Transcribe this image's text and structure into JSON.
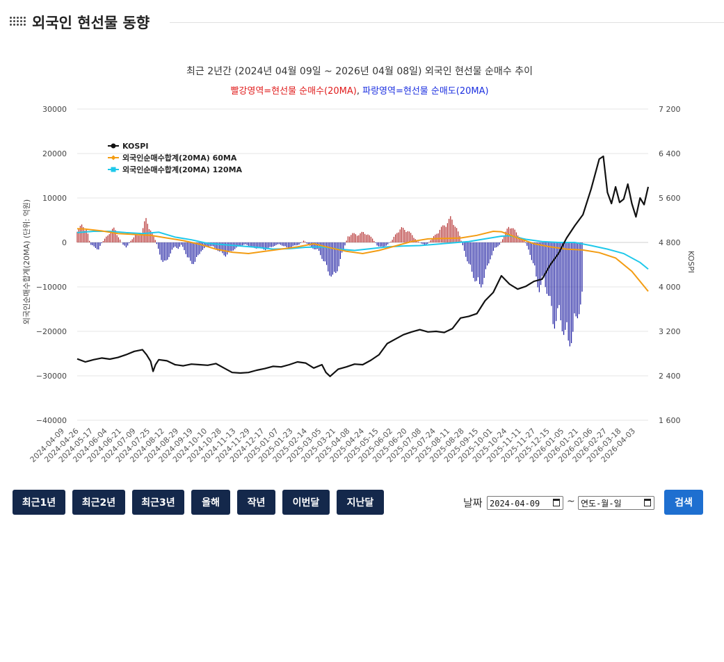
{
  "page": {
    "title": "외국인 현선물 동향"
  },
  "chart_data": {
    "type": "bar+line",
    "title": "최근 2년간 (2024년 04월 09일 ~ 2026년 04월 08일) 외국인 현선물 순매수 추이",
    "subtitle_red": "빨강영역=현선물 순매수(20MA)",
    "subtitle_sep": ", ",
    "subtitle_blue": "파랑영역=현선물 순매도(20MA)",
    "ylabel_left": "외국인순매수합계(20MA) (단위: 억원)",
    "ylabel_right": "KOSPI",
    "ylim_left": [
      -40000,
      30000
    ],
    "yticks_left": [
      "30000",
      "20000",
      "10000",
      "0",
      "−10000",
      "−20000",
      "−30000",
      "−40000"
    ],
    "ylim_right": [
      1600,
      7200
    ],
    "yticks_right": [
      "7 200",
      "6 400",
      "5 600",
      "4 800",
      "4 000",
      "3 200",
      "2 400",
      "1 600"
    ],
    "x_tick_labels": [
      "2024-04-09",
      "2024-04-26",
      "2024-05-17",
      "2024-06-04",
      "2024-06-21",
      "2024-07-09",
      "2024-07-25",
      "2024-08-12",
      "2024-08-29",
      "2024-09-19",
      "2024-10-10",
      "2024-10-28",
      "2024-11-13",
      "2024-11-29",
      "2024-12-17",
      "2025-01-07",
      "2025-01-23",
      "2025-02-14",
      "2025-03-05",
      "2025-03-21",
      "2025-04-08",
      "2025-04-24",
      "2025-05-15",
      "2025-06-02",
      "2025-06-20",
      "2025-07-08",
      "2025-07-24",
      "2025-08-11",
      "2025-08-28",
      "2025-09-15",
      "2025-10-01",
      "2025-10-24",
      "2025-11-11",
      "2025-11-27",
      "2025-12-15",
      "2026-01-05",
      "2026-01-21",
      "2026-02-06",
      "2026-02-27",
      "2026-03-18",
      "2026-04-03"
    ],
    "legend": [
      {
        "name": "KOSPI",
        "color": "#111111",
        "marker": "circle"
      },
      {
        "name": "외국인순매수합계(20MA) 60MA",
        "color": "#f39c12",
        "marker": "diamond"
      },
      {
        "name": "외국인순매수합계(20MA) 120MA",
        "color": "#1ec8ea",
        "marker": "square"
      }
    ],
    "legend_position": "top-left",
    "colors": {
      "positive_bar": "#b22a2a",
      "negative_bar": "#1a1aa0",
      "kospi": "#111111",
      "ma60": "#f39c12",
      "ma120": "#1ec8ea",
      "red_text": "#e01b1b",
      "blue_text": "#1b2fe0"
    },
    "series_kospi": [
      {
        "x": 0,
        "v": 2705
      },
      {
        "x": 1,
        "v": 2650
      },
      {
        "x": 2,
        "v": 2690
      },
      {
        "x": 3,
        "v": 2720
      },
      {
        "x": 4,
        "v": 2700
      },
      {
        "x": 5,
        "v": 2730
      },
      {
        "x": 6,
        "v": 2780
      },
      {
        "x": 7,
        "v": 2840
      },
      {
        "x": 8,
        "v": 2870
      },
      {
        "x": 8.5,
        "v": 2780
      },
      {
        "x": 9,
        "v": 2660
      },
      {
        "x": 9.3,
        "v": 2480
      },
      {
        "x": 9.6,
        "v": 2600
      },
      {
        "x": 10,
        "v": 2690
      },
      {
        "x": 11,
        "v": 2670
      },
      {
        "x": 12,
        "v": 2600
      },
      {
        "x": 13,
        "v": 2580
      },
      {
        "x": 14,
        "v": 2610
      },
      {
        "x": 15,
        "v": 2600
      },
      {
        "x": 16,
        "v": 2590
      },
      {
        "x": 17,
        "v": 2620
      },
      {
        "x": 18,
        "v": 2540
      },
      {
        "x": 19,
        "v": 2460
      },
      {
        "x": 20,
        "v": 2450
      },
      {
        "x": 21,
        "v": 2460
      },
      {
        "x": 22,
        "v": 2500
      },
      {
        "x": 23,
        "v": 2530
      },
      {
        "x": 24,
        "v": 2570
      },
      {
        "x": 25,
        "v": 2560
      },
      {
        "x": 26,
        "v": 2600
      },
      {
        "x": 27,
        "v": 2650
      },
      {
        "x": 28,
        "v": 2630
      },
      {
        "x": 29,
        "v": 2540
      },
      {
        "x": 30,
        "v": 2600
      },
      {
        "x": 30.5,
        "v": 2460
      },
      {
        "x": 31,
        "v": 2390
      },
      {
        "x": 32,
        "v": 2520
      },
      {
        "x": 33,
        "v": 2560
      },
      {
        "x": 34,
        "v": 2610
      },
      {
        "x": 35,
        "v": 2600
      },
      {
        "x": 36,
        "v": 2680
      },
      {
        "x": 37,
        "v": 2780
      },
      {
        "x": 38,
        "v": 2980
      },
      {
        "x": 39,
        "v": 3060
      },
      {
        "x": 40,
        "v": 3140
      },
      {
        "x": 41,
        "v": 3190
      },
      {
        "x": 42,
        "v": 3230
      },
      {
        "x": 43,
        "v": 3190
      },
      {
        "x": 44,
        "v": 3200
      },
      {
        "x": 45,
        "v": 3180
      },
      {
        "x": 46,
        "v": 3250
      },
      {
        "x": 47,
        "v": 3440
      },
      {
        "x": 48,
        "v": 3470
      },
      {
        "x": 49,
        "v": 3520
      },
      {
        "x": 50,
        "v": 3750
      },
      {
        "x": 51,
        "v": 3900
      },
      {
        "x": 52,
        "v": 4200
      },
      {
        "x": 53,
        "v": 4050
      },
      {
        "x": 54,
        "v": 3960
      },
      {
        "x": 55,
        "v": 4010
      },
      {
        "x": 56,
        "v": 4100
      },
      {
        "x": 57,
        "v": 4140
      },
      {
        "x": 58,
        "v": 4400
      },
      {
        "x": 59,
        "v": 4600
      },
      {
        "x": 60,
        "v": 4880
      },
      {
        "x": 61,
        "v": 5100
      },
      {
        "x": 62,
        "v": 5300
      },
      {
        "x": 63,
        "v": 5760
      },
      {
        "x": 64,
        "v": 6300
      },
      {
        "x": 64.5,
        "v": 6350
      },
      {
        "x": 65,
        "v": 5700
      },
      {
        "x": 65.5,
        "v": 5500
      },
      {
        "x": 66,
        "v": 5800
      },
      {
        "x": 66.5,
        "v": 5520
      },
      {
        "x": 67,
        "v": 5580
      },
      {
        "x": 67.5,
        "v": 5850
      },
      {
        "x": 68,
        "v": 5500
      },
      {
        "x": 68.5,
        "v": 5260
      },
      {
        "x": 69,
        "v": 5600
      },
      {
        "x": 69.5,
        "v": 5480
      },
      {
        "x": 70,
        "v": 5800
      }
    ],
    "series_ma60": [
      {
        "x": 0,
        "v": 3100
      },
      {
        "x": 1,
        "v": 3000
      },
      {
        "x": 3,
        "v": 2600
      },
      {
        "x": 5,
        "v": 2000
      },
      {
        "x": 7,
        "v": 1800
      },
      {
        "x": 9,
        "v": 1600
      },
      {
        "x": 11,
        "v": 1000
      },
      {
        "x": 13,
        "v": 400
      },
      {
        "x": 15,
        "v": -400
      },
      {
        "x": 17,
        "v": -1500
      },
      {
        "x": 19,
        "v": -2200
      },
      {
        "x": 21,
        "v": -2500
      },
      {
        "x": 23,
        "v": -2000
      },
      {
        "x": 25,
        "v": -1500
      },
      {
        "x": 27,
        "v": -1000
      },
      {
        "x": 29,
        "v": -300
      },
      {
        "x": 31,
        "v": -1200
      },
      {
        "x": 33,
        "v": -2000
      },
      {
        "x": 35,
        "v": -2500
      },
      {
        "x": 37,
        "v": -1800
      },
      {
        "x": 39,
        "v": -800
      },
      {
        "x": 41,
        "v": 200
      },
      {
        "x": 43,
        "v": 800
      },
      {
        "x": 45,
        "v": 900
      },
      {
        "x": 47,
        "v": 1000
      },
      {
        "x": 49,
        "v": 1600
      },
      {
        "x": 51,
        "v": 2500
      },
      {
        "x": 52,
        "v": 2400
      },
      {
        "x": 54,
        "v": 1000
      },
      {
        "x": 56,
        "v": -300
      },
      {
        "x": 58,
        "v": -1000
      },
      {
        "x": 60,
        "v": -1500
      },
      {
        "x": 62,
        "v": -1700
      },
      {
        "x": 64,
        "v": -2300
      },
      {
        "x": 66,
        "v": -3500
      },
      {
        "x": 68,
        "v": -6500
      },
      {
        "x": 70,
        "v": -11000
      }
    ],
    "series_ma120": [
      {
        "x": 0,
        "v": 2200
      },
      {
        "x": 2,
        "v": 2500
      },
      {
        "x": 4,
        "v": 2500
      },
      {
        "x": 6,
        "v": 2200
      },
      {
        "x": 8,
        "v": 2000
      },
      {
        "x": 10,
        "v": 2300
      },
      {
        "x": 12,
        "v": 1200
      },
      {
        "x": 14,
        "v": 600
      },
      {
        "x": 16,
        "v": -200
      },
      {
        "x": 18,
        "v": -500
      },
      {
        "x": 20,
        "v": -800
      },
      {
        "x": 22,
        "v": -1100
      },
      {
        "x": 24,
        "v": -1500
      },
      {
        "x": 26,
        "v": -1400
      },
      {
        "x": 28,
        "v": -1100
      },
      {
        "x": 30,
        "v": -1000
      },
      {
        "x": 32,
        "v": -1500
      },
      {
        "x": 34,
        "v": -1800
      },
      {
        "x": 36,
        "v": -1400
      },
      {
        "x": 38,
        "v": -1000
      },
      {
        "x": 40,
        "v": -800
      },
      {
        "x": 42,
        "v": -700
      },
      {
        "x": 44,
        "v": -400
      },
      {
        "x": 46,
        "v": -100
      },
      {
        "x": 48,
        "v": 200
      },
      {
        "x": 50,
        "v": 800
      },
      {
        "x": 52,
        "v": 1400
      },
      {
        "x": 53,
        "v": 1500
      },
      {
        "x": 55,
        "v": 700
      },
      {
        "x": 57,
        "v": 200
      },
      {
        "x": 59,
        "v": 0
      },
      {
        "x": 61,
        "v": 0
      },
      {
        "x": 63,
        "v": -700
      },
      {
        "x": 65,
        "v": -1500
      },
      {
        "x": 67,
        "v": -2500
      },
      {
        "x": 69,
        "v": -4500
      },
      {
        "x": 70,
        "v": -6000
      }
    ],
    "bar_envelope": [
      {
        "x": 0,
        "v": 3000
      },
      {
        "x": 0.6,
        "v": 4200
      },
      {
        "x": 1.2,
        "v": 3000
      },
      {
        "x": 1.6,
        "v": -500
      },
      {
        "x": 2.2,
        "v": -1200
      },
      {
        "x": 2.6,
        "v": -1800
      },
      {
        "x": 3.0,
        "v": -200
      },
      {
        "x": 3.5,
        "v": 1200
      },
      {
        "x": 4.0,
        "v": 2500
      },
      {
        "x": 4.6,
        "v": 3600
      },
      {
        "x": 5.0,
        "v": 1500
      },
      {
        "x": 5.6,
        "v": -500
      },
      {
        "x": 6.0,
        "v": -1300
      },
      {
        "x": 6.6,
        "v": 500
      },
      {
        "x": 7.2,
        "v": 2000
      },
      {
        "x": 7.6,
        "v": 1500
      },
      {
        "x": 8.0,
        "v": 3000
      },
      {
        "x": 8.4,
        "v": 5800
      },
      {
        "x": 8.8,
        "v": 4000
      },
      {
        "x": 9.2,
        "v": 2000
      },
      {
        "x": 9.6,
        "v": 500
      },
      {
        "x": 10,
        "v": -2000
      },
      {
        "x": 10.4,
        "v": -4500
      },
      {
        "x": 10.8,
        "v": -5200
      },
      {
        "x": 11.2,
        "v": -3500
      },
      {
        "x": 11.6,
        "v": -2000
      },
      {
        "x": 12,
        "v": -1000
      },
      {
        "x": 12.4,
        "v": -1500
      },
      {
        "x": 12.8,
        "v": -600
      },
      {
        "x": 13.2,
        "v": -2000
      },
      {
        "x": 13.6,
        "v": -4200
      },
      {
        "x": 14,
        "v": -5000
      },
      {
        "x": 14.4,
        "v": -4800
      },
      {
        "x": 14.8,
        "v": -3500
      },
      {
        "x": 15.2,
        "v": -2000
      },
      {
        "x": 15.8,
        "v": -1200
      },
      {
        "x": 16.4,
        "v": -800
      },
      {
        "x": 17,
        "v": -1500
      },
      {
        "x": 17.6,
        "v": -2500
      },
      {
        "x": 18.2,
        "v": -3200
      },
      {
        "x": 18.8,
        "v": -2200
      },
      {
        "x": 19.4,
        "v": -1500
      },
      {
        "x": 20,
        "v": -800
      },
      {
        "x": 20.6,
        "v": -500
      },
      {
        "x": 21.2,
        "v": -900
      },
      {
        "x": 21.8,
        "v": -1500
      },
      {
        "x": 22.4,
        "v": -1200
      },
      {
        "x": 23,
        "v": -1800
      },
      {
        "x": 23.6,
        "v": -1300
      },
      {
        "x": 24.2,
        "v": -800
      },
      {
        "x": 24.8,
        "v": -400
      },
      {
        "x": 25.4,
        "v": -1000
      },
      {
        "x": 26,
        "v": -1500
      },
      {
        "x": 26.6,
        "v": -800
      },
      {
        "x": 27.2,
        "v": -500
      },
      {
        "x": 27.8,
        "v": 500
      },
      {
        "x": 28.4,
        "v": -800
      },
      {
        "x": 29,
        "v": -1500
      },
      {
        "x": 29.6,
        "v": -2000
      },
      {
        "x": 30.2,
        "v": -4500
      },
      {
        "x": 30.8,
        "v": -7000
      },
      {
        "x": 31.4,
        "v": -8800
      },
      {
        "x": 32,
        "v": -6000
      },
      {
        "x": 32.6,
        "v": -2000
      },
      {
        "x": 33.2,
        "v": 1500
      },
      {
        "x": 33.8,
        "v": 2200
      },
      {
        "x": 34.4,
        "v": 1800
      },
      {
        "x": 35,
        "v": 2500
      },
      {
        "x": 35.6,
        "v": 2000
      },
      {
        "x": 36.2,
        "v": 1000
      },
      {
        "x": 36.8,
        "v": -800
      },
      {
        "x": 37.4,
        "v": -1200
      },
      {
        "x": 38,
        "v": -600
      },
      {
        "x": 38.6,
        "v": 500
      },
      {
        "x": 39.2,
        "v": 2500
      },
      {
        "x": 39.8,
        "v": 3500
      },
      {
        "x": 40.4,
        "v": 3000
      },
      {
        "x": 41,
        "v": 2000
      },
      {
        "x": 41.6,
        "v": 500
      },
      {
        "x": 42.2,
        "v": -300
      },
      {
        "x": 42.8,
        "v": -700
      },
      {
        "x": 43.4,
        "v": 800
      },
      {
        "x": 44,
        "v": 2000
      },
      {
        "x": 44.6,
        "v": 3500
      },
      {
        "x": 45.2,
        "v": 4500
      },
      {
        "x": 45.8,
        "v": 6000
      },
      {
        "x": 46.4,
        "v": 4000
      },
      {
        "x": 47,
        "v": 1000
      },
      {
        "x": 47.6,
        "v": -3000
      },
      {
        "x": 48.2,
        "v": -6500
      },
      {
        "x": 48.8,
        "v": -9000
      },
      {
        "x": 49.4,
        "v": -11000
      },
      {
        "x": 50,
        "v": -8000
      },
      {
        "x": 50.6,
        "v": -4000
      },
      {
        "x": 51.2,
        "v": -1500
      },
      {
        "x": 51.8,
        "v": -500
      },
      {
        "x": 52.4,
        "v": 2000
      },
      {
        "x": 53,
        "v": 4200
      },
      {
        "x": 53.6,
        "v": 3000
      },
      {
        "x": 54.2,
        "v": 1500
      },
      {
        "x": 54.8,
        "v": 500
      },
      {
        "x": 55.4,
        "v": -2000
      },
      {
        "x": 56,
        "v": -6000
      },
      {
        "x": 56.6,
        "v": -11500
      },
      {
        "x": 57.2,
        "v": -9000
      },
      {
        "x": 57.8,
        "v": -13000
      },
      {
        "x": 58.4,
        "v": -20000
      },
      {
        "x": 59,
        "v": -17000
      },
      {
        "x": 59.6,
        "v": -21000
      },
      {
        "x": 60.2,
        "v": -24500
      },
      {
        "x": 60.8,
        "v": -22000
      },
      {
        "x": 61.4,
        "v": -17000
      },
      {
        "x": 62,
        "v": -13000
      }
    ]
  },
  "buttons": {
    "b1": "최근1년",
    "b2": "최근2년",
    "b3": "최근3년",
    "b4": "올해",
    "b5": "작년",
    "b6": "이번달",
    "b7": "지난달",
    "search": "검색"
  },
  "date": {
    "label": "날짜",
    "from": "2024-04-09",
    "tilde": "~",
    "to": "연도-월-일"
  }
}
